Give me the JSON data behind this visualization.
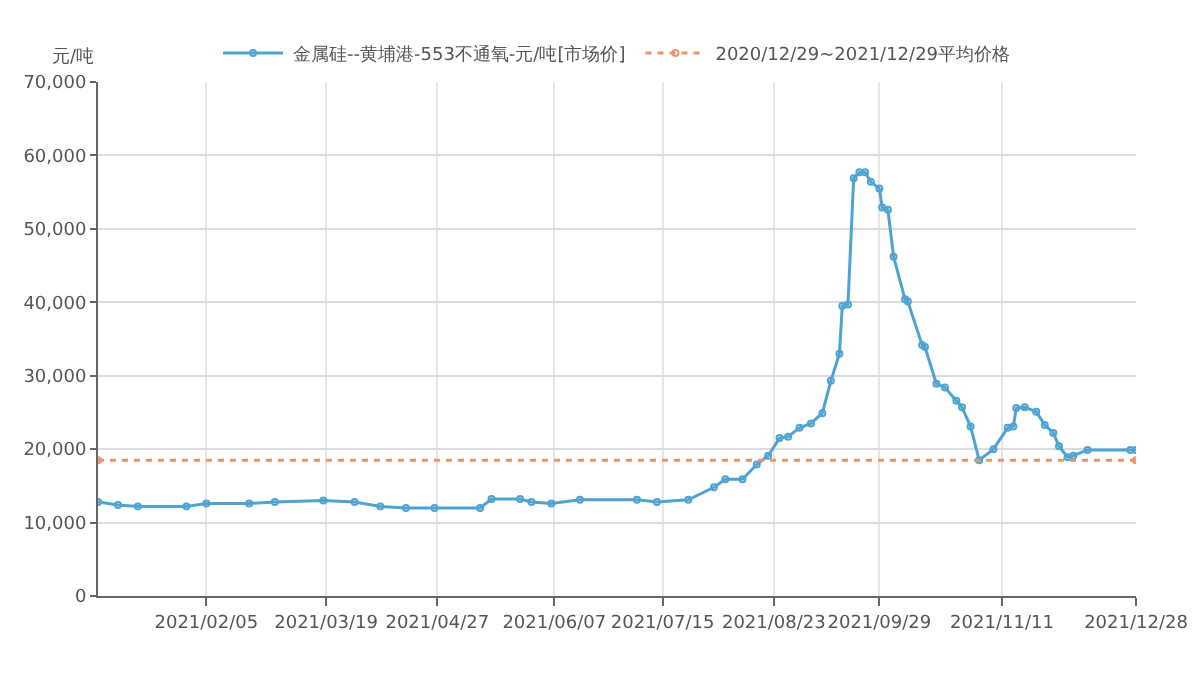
{
  "chart_data": {
    "type": "line",
    "ylabel": "元/吨",
    "legend": "top",
    "grid": true,
    "marker": "circle",
    "xlim": [
      "2020-12-29",
      "2021-12-28"
    ],
    "xticks": [
      {
        "value": "2021-02-05",
        "label": "2021/02/05"
      },
      {
        "value": "2021-03-19",
        "label": "2021/03/19"
      },
      {
        "value": "2021-04-27",
        "label": "2021/04/27"
      },
      {
        "value": "2021-06-07",
        "label": "2021/06/07"
      },
      {
        "value": "2021-07-15",
        "label": "2021/07/15"
      },
      {
        "value": "2021-08-23",
        "label": "2021/08/23"
      },
      {
        "value": "2021-09-29",
        "label": "2021/09/29"
      },
      {
        "value": "2021-11-11",
        "label": "2021/11/11"
      },
      {
        "value": "2021-12-28",
        "label": "2021/12/28"
      }
    ],
    "ylim": [
      0,
      70000
    ],
    "yticks": [
      0,
      {
        "value": 10000,
        "label": "10,000"
      },
      {
        "value": 20000,
        "label": "20,000"
      },
      {
        "value": 30000,
        "label": "30,000"
      },
      {
        "value": 40000,
        "label": "40,000"
      },
      {
        "value": 50000,
        "label": "50,000"
      },
      {
        "value": 60000,
        "label": "60,000"
      },
      {
        "value": 70000,
        "label": "70,000"
      }
    ],
    "series": [
      {
        "name": "金属硅--黄埔港-553不通氧-元/吨[市场价]",
        "color": "#4fa3d1",
        "line_style": "solid",
        "x": [
          "2020-12-29",
          "2021-01-05",
          "2021-01-12",
          "2021-01-29",
          "2021-02-05",
          "2021-02-20",
          "2021-03-01",
          "2021-03-18",
          "2021-03-29",
          "2021-04-07",
          "2021-04-16",
          "2021-04-26",
          "2021-05-12",
          "2021-05-16",
          "2021-05-26",
          "2021-05-30",
          "2021-06-06",
          "2021-06-16",
          "2021-07-06",
          "2021-07-13",
          "2021-07-24",
          "2021-08-02",
          "2021-08-06",
          "2021-08-12",
          "2021-08-17",
          "2021-08-21",
          "2021-08-25",
          "2021-08-28",
          "2021-09-01",
          "2021-09-05",
          "2021-09-09",
          "2021-09-12",
          "2021-09-15",
          "2021-09-16",
          "2021-09-18",
          "2021-09-20",
          "2021-09-22",
          "2021-09-24",
          "2021-09-26",
          "2021-09-29",
          "2021-09-30",
          "2021-10-02",
          "2021-10-04",
          "2021-10-08",
          "2021-10-09",
          "2021-10-14",
          "2021-10-15",
          "2021-10-19",
          "2021-10-22",
          "2021-10-26",
          "2021-10-28",
          "2021-10-31",
          "2021-11-03",
          "2021-11-08",
          "2021-11-13",
          "2021-11-15",
          "2021-11-16",
          "2021-11-19",
          "2021-11-23",
          "2021-11-26",
          "2021-11-29",
          "2021-12-01",
          "2021-12-04",
          "2021-12-06",
          "2021-12-11",
          "2021-12-26",
          "2021-12-28"
        ],
        "values": [
          12800,
          12400,
          12200,
          12200,
          12600,
          12600,
          12800,
          13000,
          12800,
          12200,
          12000,
          12000,
          12000,
          13200,
          13200,
          12800,
          12600,
          13100,
          13100,
          12800,
          13100,
          14800,
          15900,
          15900,
          17900,
          19100,
          21500,
          21700,
          22900,
          23500,
          24900,
          29300,
          33000,
          39500,
          39700,
          56900,
          57700,
          57700,
          56400,
          55500,
          52900,
          52600,
          46200,
          40400,
          40100,
          34200,
          33900,
          28900,
          28400,
          26600,
          25700,
          23100,
          18500,
          20000,
          22900,
          23100,
          25600,
          25700,
          25100,
          23300,
          22200,
          20400,
          18900,
          19100,
          19900,
          19900,
          19900
        ]
      },
      {
        "name": "2020/12/29~2021/12/29平均价格",
        "color": "#e8956a",
        "line_style": "dotted",
        "x": [
          "2020-12-29",
          "2021-12-28"
        ],
        "values": [
          18500,
          18500
        ]
      }
    ]
  }
}
